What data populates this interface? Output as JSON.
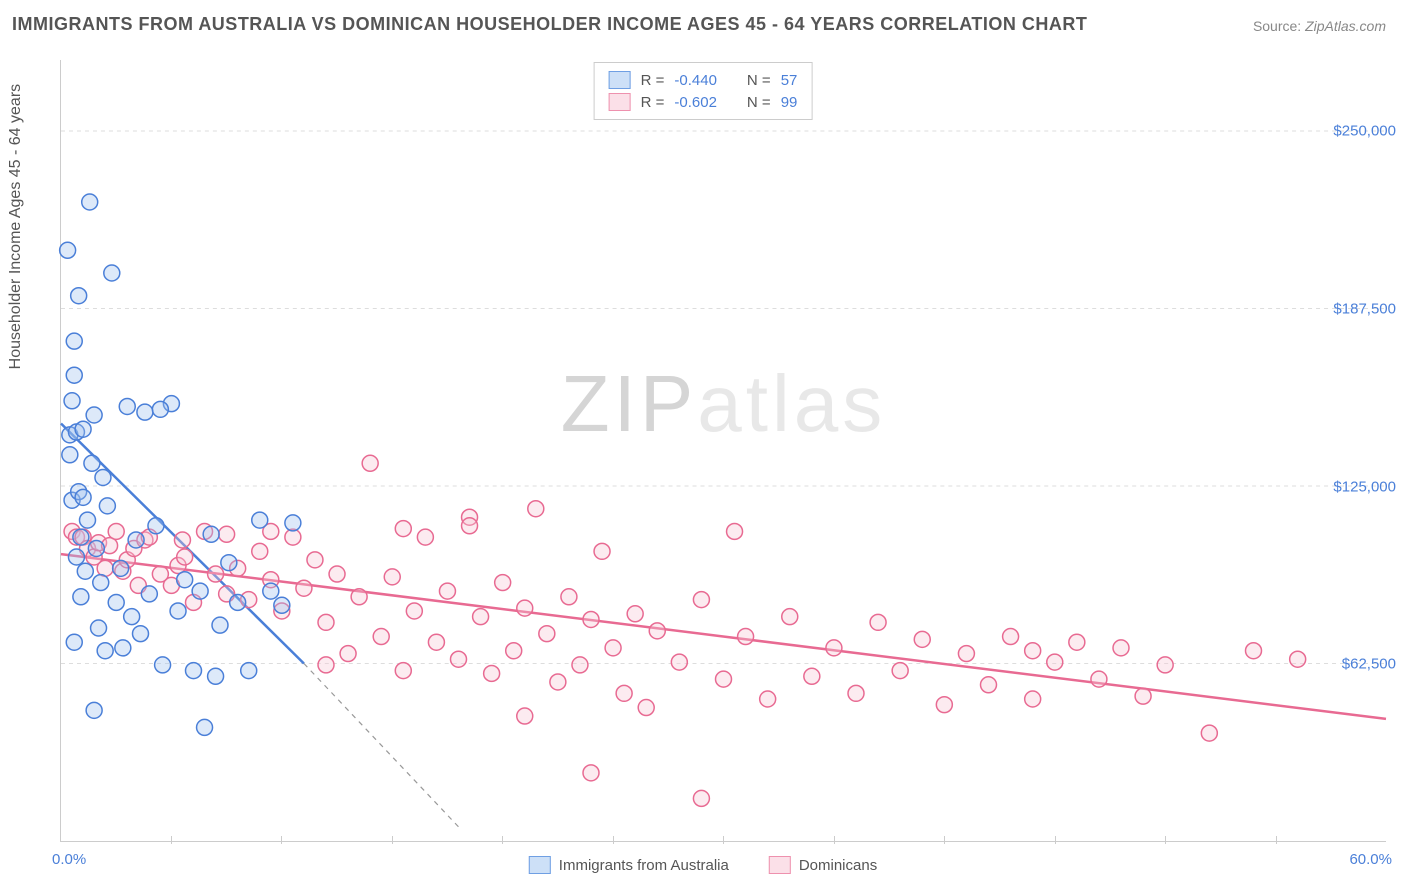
{
  "title": "IMMIGRANTS FROM AUSTRALIA VS DOMINICAN HOUSEHOLDER INCOME AGES 45 - 64 YEARS CORRELATION CHART",
  "source_label": "Source:",
  "source_value": "ZipAtlas.com",
  "watermark_zip": "ZIP",
  "watermark_atlas": "atlas",
  "chart": {
    "type": "scatter",
    "y_axis_label": "Householder Income Ages 45 - 64 years",
    "xlim": [
      0,
      60
    ],
    "ylim": [
      0,
      275000
    ],
    "x_tick_labels": [
      "0.0%",
      "60.0%"
    ],
    "x_minor_ticks": [
      5,
      10,
      15,
      20,
      25,
      30,
      35,
      40,
      45,
      50,
      55
    ],
    "y_grid": [
      62500,
      125000,
      187500,
      250000
    ],
    "y_tick_labels": [
      "$62,500",
      "$125,000",
      "$187,500",
      "$250,000"
    ],
    "background_color": "#ffffff",
    "grid_color": "#dddddd",
    "axis_color": "#cccccc",
    "tick_label_color": "#4a7fd8",
    "axis_label_color": "#555555",
    "label_fontsize": 16,
    "tick_fontsize": 15,
    "marker_radius": 8,
    "marker_stroke_width": 1.5,
    "marker_fill_opacity": 0.35,
    "trend_line_width": 2.5,
    "trend_line_width_dashed": 1.2,
    "series": [
      {
        "name": "Immigrants from Australia",
        "color": "#4a7fd8",
        "fill": "#9fc0ed",
        "stroke": "#4a7fd8",
        "swatch_fill": "#cde0f7",
        "swatch_border": "#6f9fe3",
        "R": "-0.440",
        "N": "57",
        "trend_solid": {
          "x1": 0,
          "y1": 147000,
          "x2": 11,
          "y2": 62500
        },
        "trend_dashed": {
          "x1": 11,
          "y1": 62500,
          "x2": 18,
          "y2": 5000
        },
        "points": [
          [
            0.3,
            208000
          ],
          [
            0.4,
            136000
          ],
          [
            0.4,
            143000
          ],
          [
            0.5,
            155000
          ],
          [
            0.5,
            120000
          ],
          [
            0.6,
            164000
          ],
          [
            0.6,
            176000
          ],
          [
            0.7,
            144000
          ],
          [
            0.7,
            100000
          ],
          [
            0.8,
            123000
          ],
          [
            0.8,
            192000
          ],
          [
            0.9,
            107000
          ],
          [
            0.9,
            86000
          ],
          [
            1.0,
            145000
          ],
          [
            1.0,
            121000
          ],
          [
            1.1,
            95000
          ],
          [
            1.2,
            113000
          ],
          [
            1.3,
            225000
          ],
          [
            1.4,
            133000
          ],
          [
            1.5,
            150000
          ],
          [
            1.6,
            103000
          ],
          [
            1.7,
            75000
          ],
          [
            1.8,
            91000
          ],
          [
            1.9,
            128000
          ],
          [
            2.0,
            67000
          ],
          [
            2.1,
            118000
          ],
          [
            2.3,
            200000
          ],
          [
            2.5,
            84000
          ],
          [
            2.7,
            96000
          ],
          [
            3.0,
            153000
          ],
          [
            3.2,
            79000
          ],
          [
            3.4,
            106000
          ],
          [
            3.6,
            73000
          ],
          [
            3.8,
            151000
          ],
          [
            4.0,
            87000
          ],
          [
            4.3,
            111000
          ],
          [
            4.6,
            62000
          ],
          [
            5.0,
            154000
          ],
          [
            5.3,
            81000
          ],
          [
            5.6,
            92000
          ],
          [
            6.0,
            60000
          ],
          [
            6.3,
            88000
          ],
          [
            6.8,
            108000
          ],
          [
            7.2,
            76000
          ],
          [
            7.6,
            98000
          ],
          [
            8.0,
            84000
          ],
          [
            8.5,
            60000
          ],
          [
            9.0,
            113000
          ],
          [
            9.5,
            88000
          ],
          [
            10.0,
            83000
          ],
          [
            10.5,
            112000
          ],
          [
            6.5,
            40000
          ],
          [
            7.0,
            58000
          ],
          [
            1.5,
            46000
          ],
          [
            2.8,
            68000
          ],
          [
            0.6,
            70000
          ],
          [
            4.5,
            152000
          ]
        ]
      },
      {
        "name": "Dominicans",
        "color": "#e86a92",
        "fill": "#f7c5d4",
        "stroke": "#e86a92",
        "swatch_fill": "#fbe0e8",
        "swatch_border": "#ee91ae",
        "R": "-0.602",
        "N": "99",
        "trend_solid": {
          "x1": 0,
          "y1": 101000,
          "x2": 60,
          "y2": 43000
        },
        "trend_dashed": null,
        "points": [
          [
            0.5,
            109000
          ],
          [
            0.7,
            107000
          ],
          [
            1.0,
            107000
          ],
          [
            1.2,
            103000
          ],
          [
            1.5,
            100000
          ],
          [
            1.7,
            105000
          ],
          [
            2.0,
            96000
          ],
          [
            2.2,
            104000
          ],
          [
            2.5,
            109000
          ],
          [
            2.8,
            95000
          ],
          [
            3.0,
            99000
          ],
          [
            3.3,
            103000
          ],
          [
            3.5,
            90000
          ],
          [
            3.8,
            106000
          ],
          [
            4.0,
            107000
          ],
          [
            4.5,
            94000
          ],
          [
            5.0,
            90000
          ],
          [
            5.3,
            97000
          ],
          [
            5.6,
            100000
          ],
          [
            6.0,
            84000
          ],
          [
            6.5,
            109000
          ],
          [
            7.0,
            94000
          ],
          [
            7.5,
            87000
          ],
          [
            8.0,
            96000
          ],
          [
            8.5,
            85000
          ],
          [
            9.0,
            102000
          ],
          [
            9.5,
            92000
          ],
          [
            10.0,
            81000
          ],
          [
            10.5,
            107000
          ],
          [
            11.0,
            89000
          ],
          [
            11.5,
            99000
          ],
          [
            12.0,
            77000
          ],
          [
            12.5,
            94000
          ],
          [
            13.0,
            66000
          ],
          [
            13.5,
            86000
          ],
          [
            14.0,
            133000
          ],
          [
            14.5,
            72000
          ],
          [
            15.0,
            93000
          ],
          [
            15.5,
            60000
          ],
          [
            16.0,
            81000
          ],
          [
            16.5,
            107000
          ],
          [
            17.0,
            70000
          ],
          [
            17.5,
            88000
          ],
          [
            18.0,
            64000
          ],
          [
            18.5,
            114000
          ],
          [
            19.0,
            79000
          ],
          [
            19.5,
            59000
          ],
          [
            20.0,
            91000
          ],
          [
            20.5,
            67000
          ],
          [
            21.0,
            82000
          ],
          [
            21.5,
            117000
          ],
          [
            22.0,
            73000
          ],
          [
            22.5,
            56000
          ],
          [
            23.0,
            86000
          ],
          [
            23.5,
            62000
          ],
          [
            24.0,
            78000
          ],
          [
            24.5,
            102000
          ],
          [
            25.0,
            68000
          ],
          [
            25.5,
            52000
          ],
          [
            26.0,
            80000
          ],
          [
            26.5,
            47000
          ],
          [
            27.0,
            74000
          ],
          [
            28.0,
            63000
          ],
          [
            29.0,
            85000
          ],
          [
            30.0,
            57000
          ],
          [
            30.5,
            109000
          ],
          [
            31.0,
            72000
          ],
          [
            32.0,
            50000
          ],
          [
            33.0,
            79000
          ],
          [
            34.0,
            58000
          ],
          [
            35.0,
            68000
          ],
          [
            36.0,
            52000
          ],
          [
            37.0,
            77000
          ],
          [
            38.0,
            60000
          ],
          [
            39.0,
            71000
          ],
          [
            40.0,
            48000
          ],
          [
            41.0,
            66000
          ],
          [
            42.0,
            55000
          ],
          [
            43.0,
            72000
          ],
          [
            44.0,
            50000
          ],
          [
            45.0,
            63000
          ],
          [
            46.0,
            70000
          ],
          [
            47.0,
            57000
          ],
          [
            48.0,
            68000
          ],
          [
            49.0,
            51000
          ],
          [
            50.0,
            62000
          ],
          [
            52.0,
            38000
          ],
          [
            54.0,
            67000
          ],
          [
            56.0,
            64000
          ],
          [
            24.0,
            24000
          ],
          [
            29.0,
            15000
          ],
          [
            5.5,
            106000
          ],
          [
            7.5,
            108000
          ],
          [
            9.5,
            109000
          ],
          [
            15.5,
            110000
          ],
          [
            18.5,
            111000
          ],
          [
            44.0,
            67000
          ],
          [
            21.0,
            44000
          ],
          [
            12.0,
            62000
          ]
        ]
      }
    ]
  },
  "legend_top_labels": {
    "R": "R =",
    "N": "N ="
  },
  "legend_bottom": [
    "Immigrants from Australia",
    "Dominicans"
  ]
}
